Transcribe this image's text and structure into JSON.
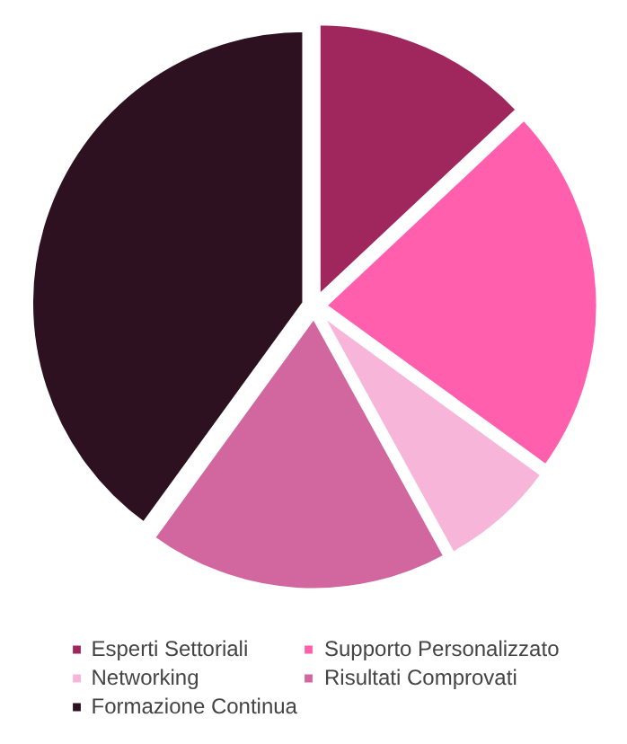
{
  "chart_data": {
    "type": "pie",
    "categories": [
      "Esperti Settoriali",
      "Supporto Personalizzato",
      "Networking",
      "Risultati Comprovati",
      "Formazione Continua"
    ],
    "values": [
      13,
      22,
      7,
      18,
      40
    ],
    "colors": [
      "#a0275e",
      "#ff5fad",
      "#f7b6d9",
      "#d2679f",
      "#2d1120"
    ],
    "legend": "bottom"
  }
}
